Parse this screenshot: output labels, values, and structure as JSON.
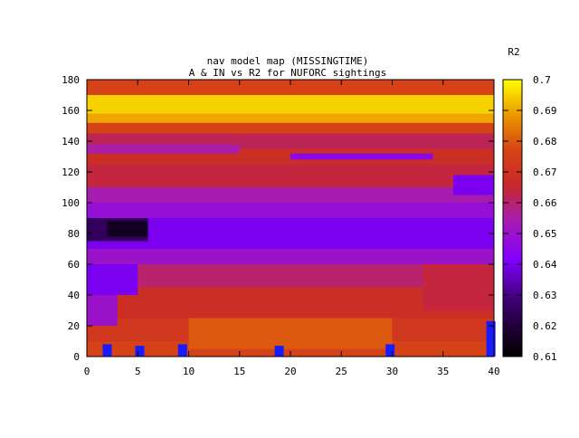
{
  "chart_data": {
    "type": "heatmap",
    "title_line1": "nav model map (MISSINGTIME)",
    "title_line2": "A & IN vs R2 for NUFORC sightings",
    "colorbar_label": "R2",
    "xlim": [
      0,
      40
    ],
    "ylim": [
      0,
      180
    ],
    "x_ticks": [
      "0",
      "5",
      "10",
      "15",
      "20",
      "25",
      "30",
      "35",
      "40"
    ],
    "y_ticks": [
      "0",
      "20",
      "40",
      "60",
      "80",
      "100",
      "120",
      "140",
      "160",
      "180"
    ],
    "cbar_range": [
      0.61,
      0.7
    ],
    "cbar_ticks": [
      "0.61",
      "0.62",
      "0.63",
      "0.64",
      "0.65",
      "0.66",
      "0.67",
      "0.68",
      "0.69",
      "0.7"
    ],
    "palette": "black-purple-red-orange-yellow",
    "bands": [
      {
        "y0": 0,
        "y1": 10,
        "value": 0.676
      },
      {
        "y0": 10,
        "y1": 25,
        "value": 0.672
      },
      {
        "y0": 25,
        "y1": 45,
        "value": 0.668
      },
      {
        "y0": 45,
        "y1": 60,
        "value": 0.66
      },
      {
        "y0": 60,
        "y1": 70,
        "value": 0.65
      },
      {
        "y0": 70,
        "y1": 90,
        "value": 0.64
      },
      {
        "y0": 90,
        "y1": 100,
        "value": 0.648
      },
      {
        "y0": 100,
        "y1": 110,
        "value": 0.654
      },
      {
        "y0": 110,
        "y1": 125,
        "value": 0.664
      },
      {
        "y0": 125,
        "y1": 135,
        "value": 0.668
      },
      {
        "y0": 135,
        "y1": 145,
        "value": 0.662
      },
      {
        "y0": 145,
        "y1": 152,
        "value": 0.676
      },
      {
        "y0": 152,
        "y1": 158,
        "value": 0.69
      },
      {
        "y0": 158,
        "y1": 170,
        "value": 0.695
      },
      {
        "y0": 170,
        "y1": 180,
        "value": 0.676
      }
    ],
    "patches": [
      {
        "x0": 0,
        "x1": 6,
        "y0": 75,
        "y1": 90,
        "value": 0.625
      },
      {
        "x0": 2,
        "x1": 6,
        "y0": 78,
        "y1": 88,
        "value": 0.615
      },
      {
        "x0": 0,
        "x1": 5,
        "y0": 40,
        "y1": 60,
        "value": 0.64
      },
      {
        "x0": 0,
        "x1": 3,
        "y0": 20,
        "y1": 40,
        "value": 0.65
      },
      {
        "x0": 20,
        "x1": 34,
        "y0": 128,
        "y1": 132,
        "value": 0.645
      },
      {
        "x0": 0,
        "x1": 15,
        "y0": 132,
        "y1": 138,
        "value": 0.655
      },
      {
        "x0": 36,
        "x1": 40,
        "y0": 105,
        "y1": 118,
        "value": 0.64
      },
      {
        "x0": 33,
        "x1": 40,
        "y0": 30,
        "y1": 60,
        "value": 0.664
      },
      {
        "x0": 10,
        "x1": 30,
        "y0": 5,
        "y1": 25,
        "value": 0.68
      }
    ],
    "markers": [
      {
        "x": 2,
        "y0": 0,
        "y1": 8
      },
      {
        "x": 5.2,
        "y0": 0,
        "y1": 7
      },
      {
        "x": 9.4,
        "y0": 0,
        "y1": 8
      },
      {
        "x": 18.9,
        "y0": 0,
        "y1": 7
      },
      {
        "x": 29.8,
        "y0": 0,
        "y1": 8
      },
      {
        "x": 39.7,
        "y0": 0,
        "y1": 23
      }
    ],
    "marker_color": "#1a1aff"
  }
}
